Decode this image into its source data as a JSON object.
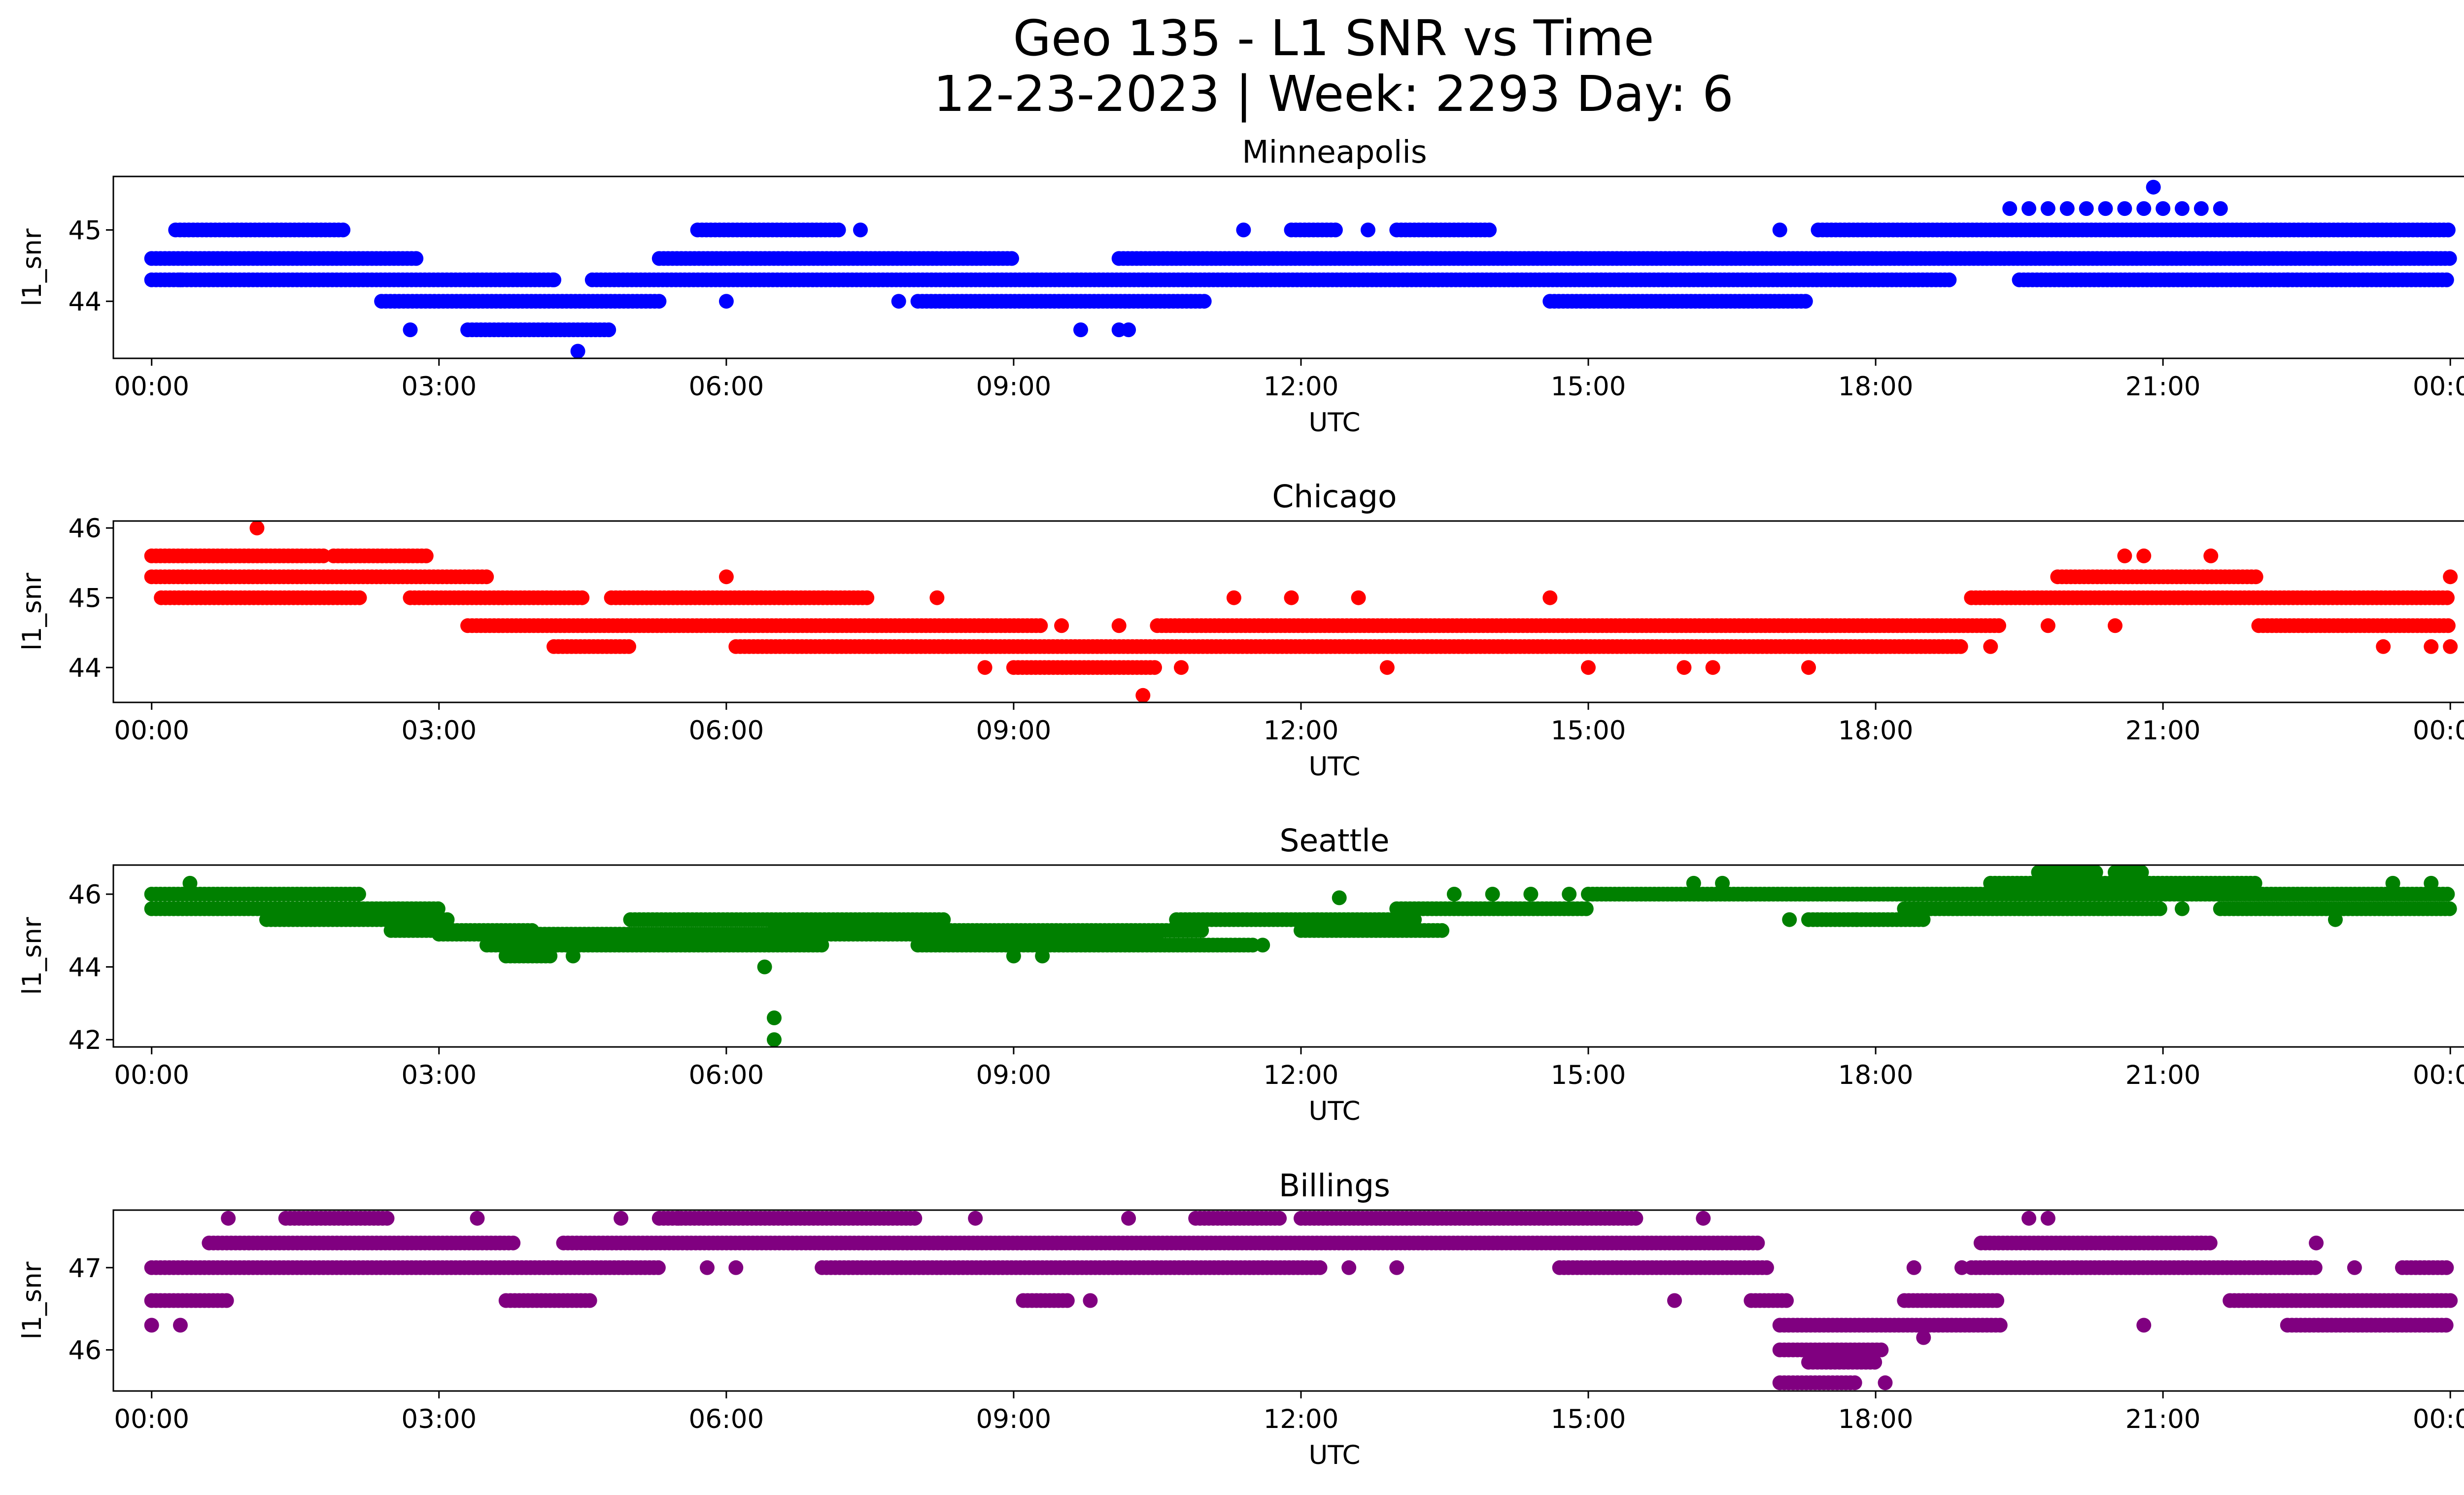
{
  "figure": {
    "title_line1": "Geo 135 - L1 SNR vs Time",
    "title_line2": "12-23-2023 | Week: 2293 Day: 6"
  },
  "chart_data": [
    {
      "type": "scatter",
      "title": "Minneapolis",
      "xlabel": "UTC",
      "ylabel": "l1_snr",
      "color": "#0000ff",
      "xlim": [
        -0.4,
        25.1
      ],
      "ylim": [
        43.2,
        45.75
      ],
      "xticks": [
        0,
        3,
        6,
        9,
        12,
        15,
        18,
        21,
        24
      ],
      "xticklabels": [
        "00:00",
        "03:00",
        "06:00",
        "09:00",
        "12:00",
        "15:00",
        "18:00",
        "21:00",
        "00:00"
      ],
      "yticks": [
        44,
        45
      ],
      "yticklabels": [
        "44",
        "45"
      ],
      "bands": [
        {
          "y": 45.0,
          "ranges": [
            [
              0.25,
              2.0
            ],
            [
              5.7,
              7.2
            ],
            [
              11.9,
              12.4
            ],
            [
              13.0,
              14.0
            ],
            [
              17.4,
              24.0
            ]
          ]
        },
        {
          "y": 44.6,
          "ranges": [
            [
              0.0,
              2.8
            ],
            [
              5.3,
              9.0
            ],
            [
              10.1,
              24.0
            ]
          ]
        },
        {
          "y": 44.3,
          "ranges": [
            [
              0.0,
              4.2
            ],
            [
              4.6,
              18.8
            ],
            [
              19.5,
              24.0
            ]
          ]
        },
        {
          "y": 44.0,
          "ranges": [
            [
              2.4,
              5.3
            ],
            [
              8.0,
              11.0
            ],
            [
              14.6,
              17.3
            ]
          ]
        },
        {
          "y": 43.6,
          "ranges": [
            [
              3.3,
              4.8
            ]
          ]
        }
      ],
      "points": [
        {
          "x": 2.7,
          "y": 43.6
        },
        {
          "x": 9.7,
          "y": 43.6
        },
        {
          "x": 10.1,
          "y": 43.6
        },
        {
          "x": 10.2,
          "y": 43.6
        },
        {
          "x": 4.45,
          "y": 43.3
        },
        {
          "x": 20.9,
          "y": 45.6
        },
        {
          "x": 7.4,
          "y": 45.0
        },
        {
          "x": 11.4,
          "y": 45.0
        },
        {
          "x": 12.7,
          "y": 45.0
        },
        {
          "x": 17.0,
          "y": 45.0
        },
        {
          "x": 19.4,
          "y": 45.3
        },
        {
          "x": 19.6,
          "y": 45.3
        },
        {
          "x": 19.8,
          "y": 45.3
        },
        {
          "x": 20.0,
          "y": 45.3
        },
        {
          "x": 20.2,
          "y": 45.3
        },
        {
          "x": 20.4,
          "y": 45.3
        },
        {
          "x": 20.6,
          "y": 45.3
        },
        {
          "x": 20.8,
          "y": 45.3
        },
        {
          "x": 21.0,
          "y": 45.3
        },
        {
          "x": 21.2,
          "y": 45.3
        },
        {
          "x": 21.4,
          "y": 45.3
        },
        {
          "x": 21.6,
          "y": 45.3
        },
        {
          "x": 6.0,
          "y": 44.0
        },
        {
          "x": 7.8,
          "y": 44.0
        },
        {
          "x": 4.2,
          "y": 44.3
        },
        {
          "x": 22.3,
          "y": 44.3
        },
        {
          "x": 22.7,
          "y": 44.6
        },
        {
          "x": 0.3,
          "y": 44.3
        }
      ]
    },
    {
      "type": "scatter",
      "title": "Chicago",
      "xlabel": "UTC",
      "ylabel": "l1_snr",
      "color": "#ff0000",
      "xlim": [
        -0.4,
        25.1
      ],
      "ylim": [
        43.5,
        46.1
      ],
      "xticks": [
        0,
        3,
        6,
        9,
        12,
        15,
        18,
        21,
        24
      ],
      "xticklabels": [
        "00:00",
        "03:00",
        "06:00",
        "09:00",
        "12:00",
        "15:00",
        "18:00",
        "21:00",
        "00:00"
      ],
      "yticks": [
        44,
        45,
        46
      ],
      "yticklabels": [
        "44",
        "45",
        "46"
      ],
      "bands": [
        {
          "y": 45.6,
          "ranges": [
            [
              0.0,
              1.8
            ],
            [
              1.9,
              2.9
            ]
          ]
        },
        {
          "y": 45.3,
          "ranges": [
            [
              0.0,
              3.5
            ],
            [
              19.9,
              22.0
            ]
          ]
        },
        {
          "y": 45.0,
          "ranges": [
            [
              0.1,
              2.2
            ],
            [
              2.7,
              4.5
            ],
            [
              4.8,
              7.5
            ],
            [
              19.0,
              24.0
            ]
          ]
        },
        {
          "y": 44.6,
          "ranges": [
            [
              3.3,
              9.3
            ],
            [
              10.5,
              19.3
            ],
            [
              22.0,
              24.0
            ]
          ]
        },
        {
          "y": 44.3,
          "ranges": [
            [
              4.2,
              5.0
            ],
            [
              6.1,
              18.9
            ]
          ]
        },
        {
          "y": 44.0,
          "ranges": [
            [
              9.0,
              10.5
            ]
          ]
        }
      ],
      "points": [
        {
          "x": 1.1,
          "y": 46.0
        },
        {
          "x": 6.0,
          "y": 45.3
        },
        {
          "x": 10.35,
          "y": 43.6
        },
        {
          "x": 8.7,
          "y": 44.0
        },
        {
          "x": 10.75,
          "y": 44.0
        },
        {
          "x": 12.9,
          "y": 44.0
        },
        {
          "x": 15.0,
          "y": 44.0
        },
        {
          "x": 16.0,
          "y": 44.0
        },
        {
          "x": 16.3,
          "y": 44.0
        },
        {
          "x": 17.3,
          "y": 44.0
        },
        {
          "x": 20.6,
          "y": 45.6
        },
        {
          "x": 20.8,
          "y": 45.6
        },
        {
          "x": 21.5,
          "y": 45.6
        },
        {
          "x": 24.0,
          "y": 45.3
        },
        {
          "x": 19.2,
          "y": 44.3
        },
        {
          "x": 23.3,
          "y": 44.3
        },
        {
          "x": 23.8,
          "y": 44.3
        },
        {
          "x": 24.0,
          "y": 44.3
        },
        {
          "x": 8.2,
          "y": 45.0
        },
        {
          "x": 9.5,
          "y": 44.6
        },
        {
          "x": 10.1,
          "y": 44.6
        },
        {
          "x": 11.3,
          "y": 45.0
        },
        {
          "x": 11.9,
          "y": 45.0
        },
        {
          "x": 14.6,
          "y": 45.0
        },
        {
          "x": 20.5,
          "y": 44.6
        },
        {
          "x": 19.8,
          "y": 44.6
        },
        {
          "x": 12.6,
          "y": 45.0
        }
      ]
    },
    {
      "type": "scatter",
      "title": "Seattle",
      "xlabel": "UTC",
      "ylabel": "l1_snr",
      "color": "#008000",
      "xlim": [
        -0.4,
        25.1
      ],
      "ylim": [
        41.8,
        46.8
      ],
      "xticks": [
        0,
        3,
        6,
        9,
        12,
        15,
        18,
        21,
        24
      ],
      "xticklabels": [
        "00:00",
        "03:00",
        "06:00",
        "09:00",
        "12:00",
        "15:00",
        "18:00",
        "21:00",
        "00:00"
      ],
      "yticks": [
        42,
        44,
        46
      ],
      "yticklabels": [
        "42",
        "44",
        "46"
      ],
      "bands": [
        {
          "y": 46.6,
          "ranges": [
            [
              19.7,
              20.3
            ],
            [
              20.5,
              20.8
            ]
          ]
        },
        {
          "y": 46.3,
          "ranges": [
            [
              19.2,
              22.0
            ]
          ]
        },
        {
          "y": 46.0,
          "ranges": [
            [
              0.0,
              2.2
            ],
            [
              15.0,
              24.0
            ]
          ]
        },
        {
          "y": 45.6,
          "ranges": [
            [
              0.0,
              3.0
            ],
            [
              13.0,
              15.0
            ],
            [
              18.3,
              21.0
            ],
            [
              21.6,
              24.0
            ]
          ]
        },
        {
          "y": 45.3,
          "ranges": [
            [
              1.2,
              3.1
            ],
            [
              5.0,
              8.3
            ],
            [
              10.7,
              13.2
            ],
            [
              17.3,
              18.5
            ]
          ]
        },
        {
          "y": 45.0,
          "ranges": [
            [
              2.5,
              4.0
            ],
            [
              6.5,
              11.0
            ],
            [
              12.0,
              13.5
            ]
          ]
        },
        {
          "y": 44.9,
          "ranges": [
            [
              3.0,
              10.5
            ]
          ]
        },
        {
          "y": 44.6,
          "ranges": [
            [
              3.5,
              7.0
            ],
            [
              8.0,
              11.5
            ]
          ]
        },
        {
          "y": 44.3,
          "ranges": [
            [
              3.7,
              4.2
            ]
          ]
        }
      ],
      "points": [
        {
          "x": 0.4,
          "y": 46.3
        },
        {
          "x": 6.4,
          "y": 44.0
        },
        {
          "x": 6.5,
          "y": 42.6
        },
        {
          "x": 6.5,
          "y": 42.0
        },
        {
          "x": 16.1,
          "y": 46.3
        },
        {
          "x": 16.4,
          "y": 46.3
        },
        {
          "x": 13.6,
          "y": 46.0
        },
        {
          "x": 14.0,
          "y": 46.0
        },
        {
          "x": 14.4,
          "y": 46.0
        },
        {
          "x": 14.8,
          "y": 46.0
        },
        {
          "x": 22.8,
          "y": 45.3
        },
        {
          "x": 23.4,
          "y": 46.3
        },
        {
          "x": 23.8,
          "y": 46.3
        },
        {
          "x": 4.4,
          "y": 44.3
        },
        {
          "x": 9.0,
          "y": 44.3
        },
        {
          "x": 9.3,
          "y": 44.3
        },
        {
          "x": 11.6,
          "y": 44.6
        },
        {
          "x": 17.1,
          "y": 45.3
        },
        {
          "x": 17.8,
          "y": 45.3
        },
        {
          "x": 21.2,
          "y": 45.6
        },
        {
          "x": 12.4,
          "y": 45.9
        }
      ]
    },
    {
      "type": "scatter",
      "title": "Billings",
      "xlabel": "UTC",
      "ylabel": "l1_snr",
      "color": "#800080",
      "xlim": [
        -0.4,
        25.1
      ],
      "ylim": [
        45.5,
        47.7
      ],
      "xticks": [
        0,
        3,
        6,
        9,
        12,
        15,
        18,
        21,
        24
      ],
      "xticklabels": [
        "00:00",
        "03:00",
        "06:00",
        "09:00",
        "12:00",
        "15:00",
        "18:00",
        "21:00",
        "00:00"
      ],
      "yticks": [
        46,
        47
      ],
      "yticklabels": [
        "46",
        "47"
      ],
      "bands": [
        {
          "y": 47.6,
          "ranges": [
            [
              1.4,
              2.5
            ],
            [
              5.3,
              8.0
            ],
            [
              10.9,
              11.8
            ],
            [
              12.0,
              15.5
            ]
          ]
        },
        {
          "y": 47.3,
          "ranges": [
            [
              0.6,
              3.8
            ],
            [
              4.3,
              16.8
            ],
            [
              19.1,
              21.5
            ]
          ]
        },
        {
          "y": 47.0,
          "ranges": [
            [
              0.0,
              5.3
            ],
            [
              7.0,
              12.2
            ],
            [
              14.7,
              16.9
            ],
            [
              19.0,
              22.6
            ],
            [
              23.5,
              24.0
            ]
          ]
        },
        {
          "y": 46.6,
          "ranges": [
            [
              0.0,
              0.8
            ],
            [
              3.7,
              4.6
            ],
            [
              9.1,
              9.6
            ],
            [
              16.7,
              17.1
            ],
            [
              18.3,
              19.3
            ],
            [
              21.7,
              24.0
            ]
          ]
        },
        {
          "y": 46.3,
          "ranges": [
            [
              17.0,
              19.3
            ],
            [
              22.3,
              24.0
            ]
          ]
        },
        {
          "y": 46.0,
          "ranges": [
            [
              17.0,
              18.1
            ]
          ]
        },
        {
          "y": 45.85,
          "ranges": [
            [
              17.3,
              18.0
            ]
          ]
        },
        {
          "y": 45.6,
          "ranges": [
            [
              17.0,
              17.8
            ]
          ]
        }
      ],
      "points": [
        {
          "x": 0.0,
          "y": 46.3
        },
        {
          "x": 0.3,
          "y": 46.3
        },
        {
          "x": 0.8,
          "y": 47.6
        },
        {
          "x": 3.4,
          "y": 47.6
        },
        {
          "x": 4.9,
          "y": 47.6
        },
        {
          "x": 5.5,
          "y": 47.6
        },
        {
          "x": 8.6,
          "y": 47.6
        },
        {
          "x": 10.2,
          "y": 47.6
        },
        {
          "x": 16.2,
          "y": 47.6
        },
        {
          "x": 9.8,
          "y": 46.6
        },
        {
          "x": 15.9,
          "y": 46.6
        },
        {
          "x": 18.1,
          "y": 45.6
        },
        {
          "x": 19.6,
          "y": 47.6
        },
        {
          "x": 19.8,
          "y": 47.6
        },
        {
          "x": 20.8,
          "y": 46.3
        },
        {
          "x": 23.0,
          "y": 47.0
        },
        {
          "x": 22.6,
          "y": 47.3
        },
        {
          "x": 18.4,
          "y": 47.0
        },
        {
          "x": 18.9,
          "y": 47.0
        },
        {
          "x": 5.8,
          "y": 47.0
        },
        {
          "x": 6.1,
          "y": 47.0
        },
        {
          "x": 13.0,
          "y": 47.0
        },
        {
          "x": 12.5,
          "y": 47.0
        },
        {
          "x": 18.5,
          "y": 46.15
        },
        {
          "x": 21.4,
          "y": 47.3
        }
      ]
    }
  ]
}
